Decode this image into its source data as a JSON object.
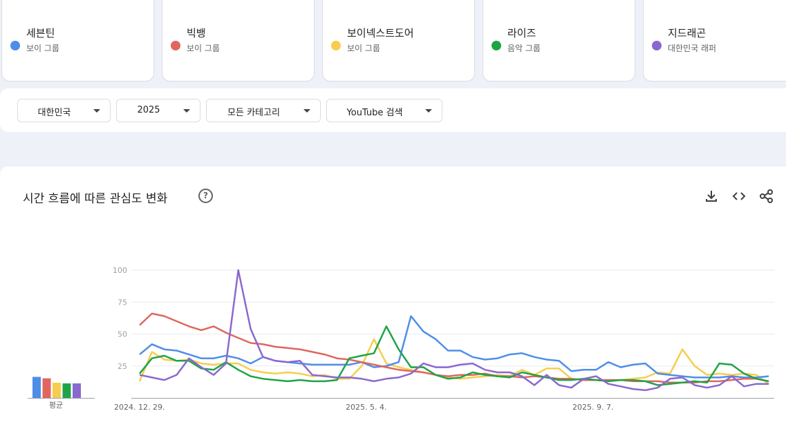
{
  "terms": [
    {
      "term": "세븐틴",
      "type": "보이 그룹",
      "color": "#4e8ee8"
    },
    {
      "term": "빅뱅",
      "type": "보이 그룹",
      "color": "#e0665f"
    },
    {
      "term": "보이넥스트도어",
      "type": "보이 그룹",
      "color": "#f6cd4f"
    },
    {
      "term": "라이즈",
      "type": "음악 그룹",
      "color": "#1ea446"
    },
    {
      "term": "지드래곤",
      "type": "대한민국 래퍼",
      "color": "#8b68cf"
    }
  ],
  "filters": {
    "region": "대한민국",
    "period": "2025",
    "category": "모든 카테고리",
    "search_type": "YouTube 검색"
  },
  "panel": {
    "title": "시간 흐름에 따른 관심도 변화",
    "help_icon": "help-circle-icon",
    "tools": [
      "download-icon",
      "embed-code-icon",
      "share-icon"
    ],
    "avg_label": "평균"
  },
  "chart_data": {
    "type": "line",
    "x_tick_labels": [
      "2024. 12. 29.",
      "2025. 5. 4.",
      "2025. 9. 7."
    ],
    "y_tick_labels": [
      "100",
      "75",
      "50",
      "25"
    ],
    "ylim": [
      0,
      100
    ],
    "grid": true,
    "averages": [
      29,
      27,
      21,
      20,
      20
    ],
    "series": [
      {
        "name": "세븐틴",
        "color": "#4e8ee8",
        "values": [
          34,
          42,
          38,
          37,
          34,
          31,
          31,
          33,
          31,
          27,
          32,
          29,
          28,
          27,
          26,
          26,
          26,
          26,
          28,
          24,
          25,
          28,
          64,
          52,
          46,
          37,
          37,
          32,
          30,
          31,
          34,
          35,
          32,
          30,
          29,
          21,
          22,
          22,
          28,
          24,
          26,
          27,
          19,
          18,
          17,
          16,
          16,
          16,
          17,
          16,
          16,
          17
        ]
      },
      {
        "name": "빅뱅",
        "color": "#e0665f",
        "values": [
          57,
          66,
          64,
          60,
          56,
          53,
          56,
          51,
          47,
          43,
          42,
          40,
          39,
          38,
          36,
          34,
          31,
          30,
          28,
          26,
          24,
          22,
          21,
          20,
          18,
          17,
          18,
          18,
          19,
          17,
          17,
          16,
          17,
          16,
          15,
          15,
          14,
          14,
          14,
          14,
          13,
          13,
          13,
          12,
          12,
          12,
          13,
          13,
          14,
          15,
          15,
          13
        ]
      },
      {
        "name": "보이넥스트도어",
        "color": "#f6cd4f",
        "values": [
          13,
          36,
          30,
          29,
          30,
          27,
          26,
          27,
          27,
          22,
          20,
          19,
          20,
          19,
          17,
          18,
          15,
          15,
          25,
          46,
          27,
          24,
          22,
          20,
          18,
          16,
          15,
          16,
          17,
          18,
          17,
          22,
          18,
          23,
          23,
          15,
          14,
          14,
          13,
          14,
          15,
          16,
          20,
          19,
          38,
          25,
          18,
          19,
          18,
          19,
          18,
          11
        ]
      },
      {
        "name": "라이즈",
        "color": "#1ea446",
        "values": [
          19,
          31,
          33,
          29,
          29,
          23,
          22,
          28,
          22,
          17,
          15,
          14,
          13,
          14,
          13,
          13,
          14,
          31,
          33,
          35,
          56,
          38,
          24,
          24,
          18,
          15,
          16,
          20,
          18,
          17,
          16,
          20,
          18,
          16,
          14,
          14,
          15,
          14,
          13,
          14,
          14,
          13,
          10,
          11,
          12,
          13,
          12,
          27,
          26,
          19,
          15,
          13
        ]
      },
      {
        "name": "지드래곤",
        "color": "#8b68cf",
        "values": [
          18,
          16,
          14,
          18,
          31,
          24,
          18,
          27,
          100,
          54,
          32,
          29,
          28,
          29,
          18,
          17,
          16,
          16,
          15,
          13,
          15,
          16,
          19,
          27,
          24,
          24,
          26,
          27,
          22,
          20,
          20,
          17,
          10,
          18,
          10,
          8,
          15,
          17,
          11,
          9,
          7,
          6,
          8,
          15,
          16,
          10,
          8,
          10,
          17,
          9,
          11,
          11
        ]
      }
    ]
  }
}
